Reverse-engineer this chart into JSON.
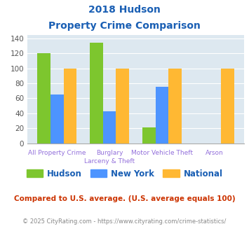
{
  "title_line1": "2018 Hudson",
  "title_line2": "Property Crime Comparison",
  "cat_labels_line1": [
    "All Property Crime",
    "Burglary",
    "Motor Vehicle Theft",
    "Arson"
  ],
  "cat_labels_line2": [
    "",
    "Larceny & Theft",
    "",
    ""
  ],
  "hudson": [
    120,
    134,
    21,
    0
  ],
  "newyork": [
    65,
    43,
    75,
    0
  ],
  "national": [
    100,
    100,
    100,
    100
  ],
  "hudson_color": "#7dc62e",
  "newyork_color": "#4d94ff",
  "national_color": "#ffb833",
  "ylim": [
    0,
    145
  ],
  "yticks": [
    0,
    20,
    40,
    60,
    80,
    100,
    120,
    140
  ],
  "bar_width": 0.25,
  "plot_bg": "#dde8f0",
  "title_color": "#1a5fb4",
  "axis_label_color": "#9370db",
  "legend_label_color": "#1a5fb4",
  "footer_text": "Compared to U.S. average. (U.S. average equals 100)",
  "footer_color": "#cc3300",
  "copyright_text": "© 2025 CityRating.com - https://www.cityrating.com/crime-statistics/",
  "copyright_color": "#888888"
}
